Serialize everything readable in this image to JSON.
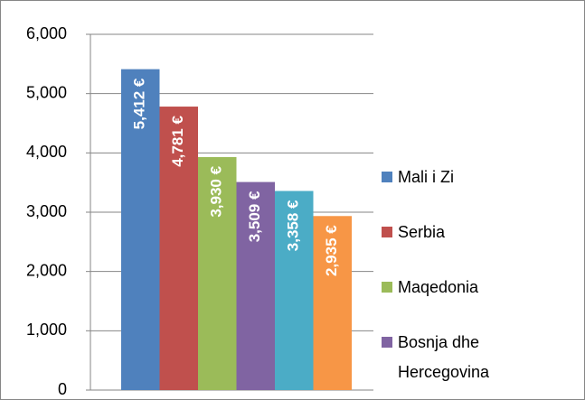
{
  "chart_data": {
    "type": "bar",
    "series": [
      {
        "name": "Mali i Zi",
        "color": "#4f81bd",
        "values": [
          5412
        ],
        "value_labels": [
          "5,412 €"
        ]
      },
      {
        "name": "Serbia",
        "color": "#c0504d",
        "values": [
          4781
        ],
        "value_labels": [
          "4,781 €"
        ]
      },
      {
        "name": "Maqedonia",
        "color": "#9bbb59",
        "values": [
          3930
        ],
        "value_labels": [
          "3,930 €"
        ]
      },
      {
        "name": "Bosnja dhe Hercegovina",
        "color": "#8064a2",
        "values": [
          3509
        ],
        "value_labels": [
          "3,509 €"
        ]
      },
      {
        "name": null,
        "color": "#4bacc6",
        "values": [
          3358
        ],
        "value_labels": [
          "3,358 €"
        ]
      },
      {
        "name": null,
        "color": "#f79646",
        "values": [
          2935
        ],
        "value_labels": [
          "2,935 €"
        ]
      }
    ],
    "ylim": [
      0,
      6000
    ],
    "yticks": [
      0,
      {
        "value": 1000,
        "label": "1,000"
      },
      {
        "value": 2000,
        "label": "2,000"
      },
      {
        "value": 3000,
        "label": "3,000"
      },
      {
        "value": 4000,
        "label": "4,000"
      },
      {
        "value": 5000,
        "label": "5,000"
      },
      {
        "value": 6000,
        "label": "6,000"
      }
    ],
    "grid": true,
    "legend": "right"
  }
}
